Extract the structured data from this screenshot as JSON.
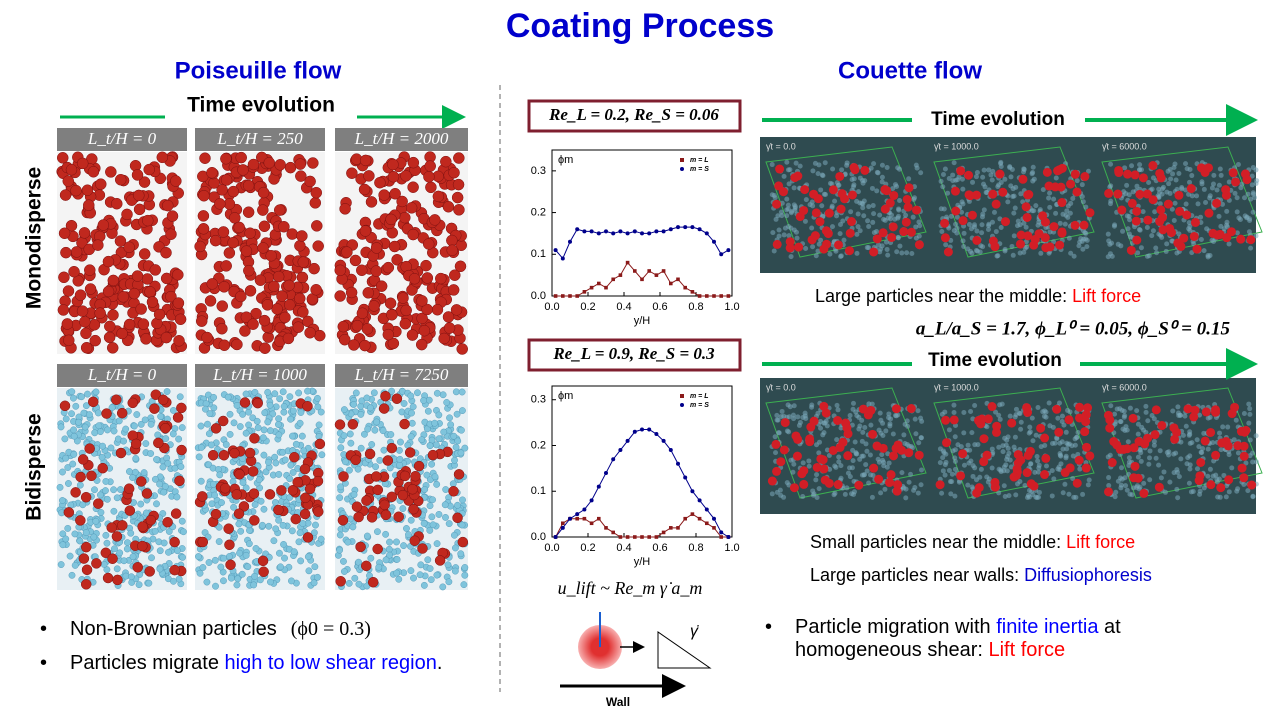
{
  "slide": {
    "title": "Coating Process",
    "left": {
      "heading": "Poiseuille flow",
      "time_label": "Time evolution",
      "row_labels": [
        "Monodisperse",
        "Bidisperse"
      ],
      "mono_panels": [
        "L_t/H = 0",
        "L_t/H = 250",
        "L_t/H = 2000"
      ],
      "bi_panels": [
        "L_t/H = 0",
        "L_t/H = 1000",
        "L_t/H = 7250"
      ],
      "bullets": [
        {
          "parts": [
            "Non-Brownian particles",
            "(ϕ0 = 0.3)"
          ]
        },
        {
          "parts": [
            "Particles migrate ",
            "high to low shear region",
            "."
          ]
        }
      ]
    },
    "right": {
      "heading": "Couette flow",
      "time_label_1": "Time evolution",
      "time_label_2": "Time evolution",
      "panels_1": [
        "γ̇t = 0.0",
        "γ̇t = 1000.0",
        "γ̇t = 6000.0"
      ],
      "panels_2": [
        "γ̇t = 0.0",
        "γ̇t = 1000.0",
        "γ̇t = 6000.0"
      ],
      "note_1": [
        "Large particles near the middle: ",
        "Lift force"
      ],
      "params": "a_L/a_S = 1.7,   ϕ_L⁰ = 0.05,   ϕ_S⁰ = 0.15",
      "note_2": [
        "Small particles near the middle: ",
        "Lift force"
      ],
      "note_3": [
        "Large particles near walls: ",
        "Diffusiophoresis"
      ],
      "bullet": [
        "Particle migration with ",
        "finite inertia",
        " at",
        "homogeneous shear: ",
        "Lift force"
      ]
    },
    "formula": "u_lift ~ Re_m γ̇ a_m",
    "wall_label": "Wall",
    "shear_label": "γ̇"
  },
  "chart_data": [
    {
      "type": "line",
      "title": "Re_L = 0.2, Re_S = 0.06",
      "x_label": "y/H",
      "y_label": "ϕm",
      "x": [
        0.02,
        0.06,
        0.1,
        0.14,
        0.18,
        0.22,
        0.26,
        0.3,
        0.34,
        0.38,
        0.42,
        0.46,
        0.5,
        0.54,
        0.58,
        0.62,
        0.66,
        0.7,
        0.74,
        0.78,
        0.82,
        0.86,
        0.9,
        0.94,
        0.98
      ],
      "series": [
        {
          "name": "m = L",
          "color": "#8b1a1a",
          "marker": "square",
          "values": [
            0,
            0,
            0,
            0,
            0.01,
            0.02,
            0.03,
            0.02,
            0.04,
            0.05,
            0.08,
            0.06,
            0.04,
            0.06,
            0.05,
            0.06,
            0.03,
            0.04,
            0.02,
            0.01,
            0,
            0,
            0,
            0,
            0
          ]
        },
        {
          "name": "m = S",
          "color": "#00008b",
          "marker": "circle",
          "values": [
            0.11,
            0.09,
            0.13,
            0.16,
            0.155,
            0.155,
            0.15,
            0.155,
            0.15,
            0.155,
            0.15,
            0.155,
            0.15,
            0.15,
            0.155,
            0.155,
            0.16,
            0.165,
            0.165,
            0.165,
            0.16,
            0.15,
            0.13,
            0.1,
            0.11
          ]
        }
      ],
      "xlim": [
        0,
        1
      ],
      "ylim": [
        0,
        0.35
      ],
      "xticks": [
        {
          "value": 0,
          "label": "0.0"
        },
        {
          "value": 0.2,
          "label": "0.2"
        },
        {
          "value": 0.4,
          "label": "0.4"
        },
        {
          "value": 0.6,
          "label": "0.6"
        },
        {
          "value": 0.8,
          "label": "0.8"
        },
        {
          "value": 1,
          "label": "1.0"
        }
      ],
      "yticks": [
        {
          "value": 0,
          "label": "0.0"
        },
        0.1,
        0.2,
        0.3
      ]
    },
    {
      "type": "line",
      "title": "Re_L = 0.9, Re_S = 0.3",
      "x_label": "y/H",
      "y_label": "ϕm",
      "x": [
        0.02,
        0.06,
        0.1,
        0.14,
        0.18,
        0.22,
        0.26,
        0.3,
        0.34,
        0.38,
        0.42,
        0.46,
        0.5,
        0.54,
        0.58,
        0.62,
        0.66,
        0.7,
        0.74,
        0.78,
        0.82,
        0.86,
        0.9,
        0.94,
        0.98
      ],
      "series": [
        {
          "name": "m = L",
          "color": "#8b1a1a",
          "marker": "square",
          "values": [
            0,
            0.03,
            0.04,
            0.04,
            0.04,
            0.03,
            0.04,
            0.02,
            0.01,
            0,
            0,
            0,
            0,
            0,
            0,
            0.01,
            0.02,
            0.02,
            0.04,
            0.05,
            0.04,
            0.03,
            0.02,
            0,
            0
          ]
        },
        {
          "name": "m = S",
          "color": "#00008b",
          "marker": "circle",
          "values": [
            0,
            0.02,
            0.04,
            0.05,
            0.06,
            0.08,
            0.11,
            0.14,
            0.17,
            0.19,
            0.21,
            0.23,
            0.235,
            0.235,
            0.225,
            0.21,
            0.19,
            0.16,
            0.13,
            0.1,
            0.08,
            0.06,
            0.04,
            0.01,
            0
          ]
        }
      ],
      "xlim": [
        0,
        1
      ],
      "ylim": [
        0,
        0.33
      ],
      "xticks": [
        {
          "value": 0,
          "label": "0.0"
        },
        {
          "value": 0.2,
          "label": "0.2"
        },
        {
          "value": 0.4,
          "label": "0.4"
        },
        {
          "value": 0.6,
          "label": "0.6"
        },
        {
          "value": 0.8,
          "label": "0.8"
        },
        {
          "value": 1,
          "label": "1.0"
        }
      ],
      "yticks": [
        {
          "value": 0,
          "label": "0.0"
        },
        0.1,
        0.2,
        0.3
      ]
    }
  ]
}
